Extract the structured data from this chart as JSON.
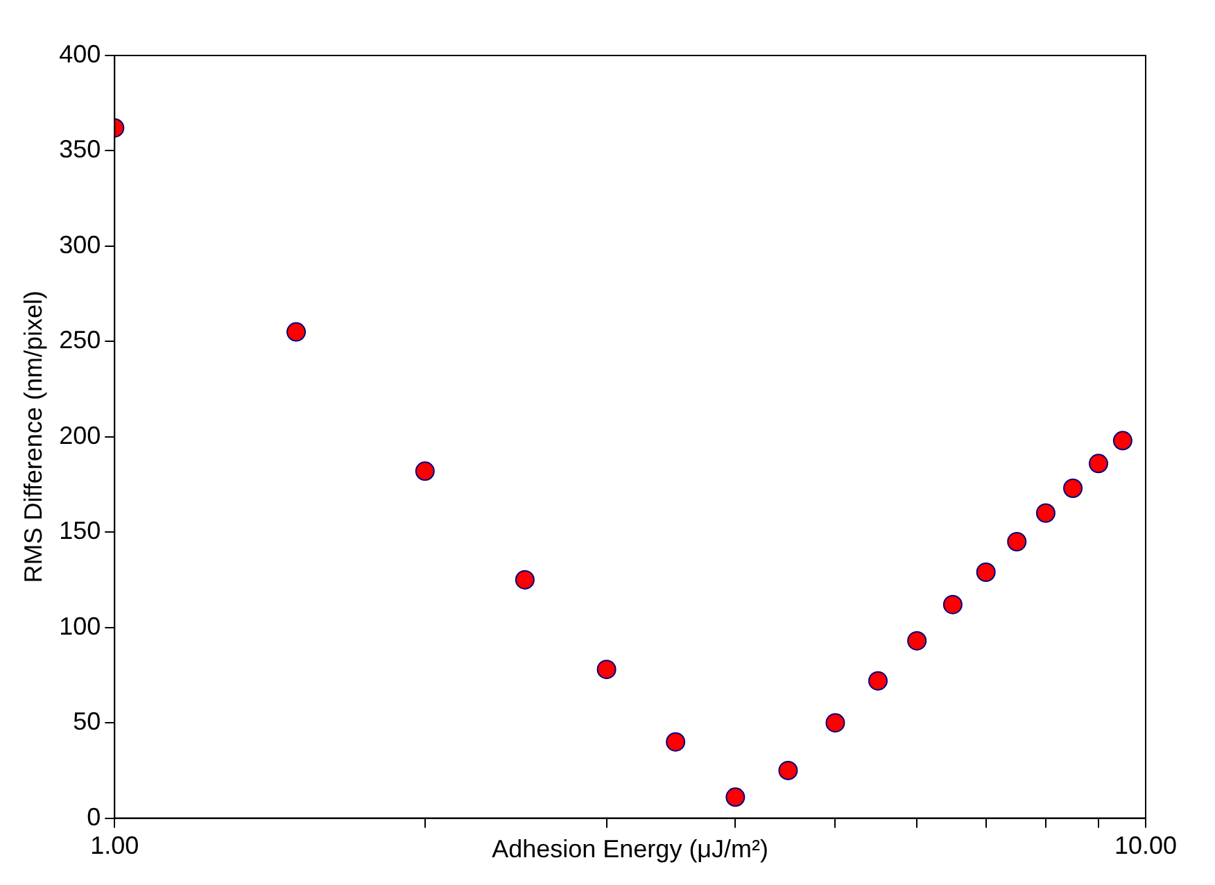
{
  "chart_data": {
    "type": "scatter",
    "xlabel": "Adhesion Energy (μJ/m²)",
    "ylabel": "RMS Difference (nm/pixel)",
    "log": "x",
    "xlim": [
      1,
      10
    ],
    "ylim": [
      0,
      400
    ],
    "xticks": [
      {
        "value": 1,
        "label": "1.00"
      },
      {
        "value": 2,
        "label": null
      },
      {
        "value": 3,
        "label": null
      },
      {
        "value": 4,
        "label": null
      },
      {
        "value": 5,
        "label": null
      },
      {
        "value": 6,
        "label": null
      },
      {
        "value": 7,
        "label": null
      },
      {
        "value": 8,
        "label": null
      },
      {
        "value": 9,
        "label": null
      },
      {
        "value": 10,
        "label": "10.00"
      }
    ],
    "yticks": [
      0,
      50,
      100,
      150,
      200,
      250,
      300,
      350,
      400
    ],
    "grid": false,
    "legend": false,
    "marker": "circle",
    "series": [
      {
        "color": "#ff0000",
        "x": [
          1,
          1.5,
          2,
          2.5,
          3,
          3.5,
          4,
          4.5,
          5,
          5.5,
          6,
          6.5,
          7,
          7.5,
          8,
          8.5,
          9,
          9.5
        ],
        "values": [
          362,
          255,
          182,
          125,
          78,
          40,
          11,
          25,
          50,
          72,
          93,
          112,
          129,
          145,
          160,
          173,
          186,
          198
        ]
      }
    ]
  }
}
